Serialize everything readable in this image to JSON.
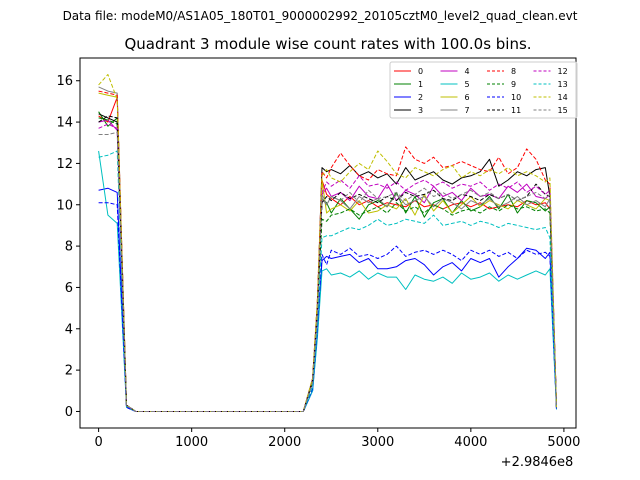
{
  "header": {
    "data_file": "Data file: modeM0/AS1A05_180T01_9000002992_20105cztM0_level2_quad_clean.evt"
  },
  "chart_data": {
    "type": "line",
    "title": "Quadrant 3 module wise count rates with 100.0s bins.",
    "xlabel": "",
    "ylabel": "",
    "x_offset_label": "+2.9846e8",
    "xlim": [
      -200,
      5130
    ],
    "ylim": [
      -0.8,
      17.1
    ],
    "x_ticks": [
      0,
      1000,
      2000,
      3000,
      4000,
      5000
    ],
    "x_tick_labels": [
      "0",
      "1000",
      "2000",
      "3000",
      "4000",
      "5000"
    ],
    "y_ticks": [
      0,
      2,
      4,
      6,
      8,
      10,
      12,
      14,
      16
    ],
    "y_tick_labels": [
      "0",
      "2",
      "4",
      "6",
      "8",
      "10",
      "12",
      "14",
      "16"
    ],
    "grid": false,
    "legend_position": "top-right",
    "x": [
      0,
      100,
      200,
      300,
      400,
      500,
      600,
      700,
      800,
      900,
      1000,
      1100,
      1200,
      1300,
      1400,
      1500,
      1600,
      1700,
      1800,
      1900,
      2000,
      2100,
      2200,
      2300,
      2350,
      2400,
      2450,
      2500,
      2600,
      2700,
      2800,
      2900,
      3000,
      3100,
      3200,
      3300,
      3400,
      3500,
      3600,
      3700,
      3800,
      3900,
      4000,
      4100,
      4200,
      4300,
      4400,
      4500,
      4600,
      4700,
      4800,
      4850,
      4920
    ],
    "series": [
      {
        "name": "0",
        "color": "#ff0000",
        "dash": false,
        "values": [
          14.3,
          14.0,
          15.2,
          0.3,
          0.0,
          0.0,
          0.0,
          0.0,
          0.0,
          0.0,
          0.0,
          0.0,
          0.0,
          0.0,
          0.0,
          0.0,
          0.0,
          0.0,
          0.0,
          0.0,
          0.0,
          0.0,
          0.0,
          1.5,
          5.0,
          11.2,
          10.5,
          10.3,
          10.0,
          10.4,
          10.0,
          10.2,
          9.9,
          10.1,
          10.0,
          9.9,
          10.2,
          9.9,
          10.0,
          9.8,
          10.0,
          10.1,
          9.9,
          10.1,
          9.8,
          9.9,
          10.0,
          9.9,
          10.2,
          10.0,
          10.1,
          9.8,
          0.2
        ]
      },
      {
        "name": "1",
        "color": "#008000",
        "dash": false,
        "values": [
          14.5,
          13.8,
          14.2,
          0.3,
          0.0,
          0.0,
          0.0,
          0.0,
          0.0,
          0.0,
          0.0,
          0.0,
          0.0,
          0.0,
          0.0,
          0.0,
          0.0,
          0.0,
          0.0,
          0.0,
          0.0,
          0.0,
          0.0,
          1.4,
          4.8,
          10.3,
          10.1,
          9.6,
          10.3,
          9.8,
          9.3,
          10.0,
          10.2,
          9.9,
          10.6,
          9.6,
          10.4,
          9.4,
          10.1,
          10.3,
          9.6,
          10.2,
          9.7,
          9.9,
          10.4,
          9.8,
          10.5,
          9.6,
          10.2,
          10.1,
          9.7,
          9.9,
          0.2
        ]
      },
      {
        "name": "2",
        "color": "#0000ff",
        "dash": false,
        "values": [
          10.7,
          10.8,
          10.6,
          0.2,
          0.0,
          0.0,
          0.0,
          0.0,
          0.0,
          0.0,
          0.0,
          0.0,
          0.0,
          0.0,
          0.0,
          0.0,
          0.0,
          0.0,
          0.0,
          0.0,
          0.0,
          0.0,
          0.0,
          1.0,
          3.7,
          7.3,
          7.5,
          7.4,
          7.5,
          7.6,
          7.2,
          7.4,
          6.9,
          6.9,
          7.0,
          7.3,
          7.4,
          7.1,
          6.6,
          7.0,
          7.2,
          6.8,
          7.4,
          7.2,
          7.4,
          6.5,
          7.0,
          7.4,
          7.9,
          7.8,
          7.4,
          7.7,
          0.1
        ]
      },
      {
        "name": "3",
        "color": "#000000",
        "dash": false,
        "values": [
          14.4,
          14.2,
          14.0,
          0.3,
          0.0,
          0.0,
          0.0,
          0.0,
          0.0,
          0.0,
          0.0,
          0.0,
          0.0,
          0.0,
          0.0,
          0.0,
          0.0,
          0.0,
          0.0,
          0.0,
          0.0,
          0.0,
          0.0,
          1.5,
          5.0,
          11.8,
          11.6,
          11.7,
          11.5,
          11.9,
          11.4,
          11.6,
          11.3,
          11.5,
          11.0,
          11.8,
          11.2,
          11.4,
          11.6,
          11.2,
          11.0,
          11.3,
          11.4,
          11.6,
          12.2,
          10.9,
          11.2,
          11.6,
          11.4,
          11.7,
          11.8,
          10.4,
          0.2
        ]
      },
      {
        "name": "4",
        "color": "#c000c0",
        "dash": false,
        "values": [
          14.0,
          14.1,
          13.6,
          0.3,
          0.0,
          0.0,
          0.0,
          0.0,
          0.0,
          0.0,
          0.0,
          0.0,
          0.0,
          0.0,
          0.0,
          0.0,
          0.0,
          0.0,
          0.0,
          0.0,
          0.0,
          0.0,
          0.0,
          1.4,
          5.0,
          10.5,
          10.8,
          10.4,
          10.6,
          10.2,
          10.9,
          10.4,
          10.3,
          11.0,
          10.2,
          10.7,
          10.5,
          10.1,
          10.9,
          10.4,
          10.6,
          10.2,
          10.8,
          10.4,
          10.5,
          10.3,
          10.9,
          10.6,
          11.0,
          10.4,
          10.3,
          10.5,
          0.2
        ]
      },
      {
        "name": "5",
        "color": "#00c0c0",
        "dash": false,
        "values": [
          12.6,
          9.5,
          9.1,
          0.2,
          0.0,
          0.0,
          0.0,
          0.0,
          0.0,
          0.0,
          0.0,
          0.0,
          0.0,
          0.0,
          0.0,
          0.0,
          0.0,
          0.0,
          0.0,
          0.0,
          0.0,
          0.0,
          0.0,
          1.0,
          3.5,
          6.8,
          6.9,
          6.6,
          6.7,
          6.5,
          6.8,
          6.4,
          6.7,
          6.5,
          6.5,
          5.9,
          6.6,
          6.4,
          6.3,
          6.5,
          6.2,
          6.7,
          6.4,
          6.5,
          6.7,
          6.3,
          6.6,
          6.4,
          6.6,
          6.8,
          6.6,
          6.9,
          0.1
        ]
      },
      {
        "name": "6",
        "color": "#bfbf00",
        "dash": false,
        "values": [
          15.4,
          15.3,
          15.2,
          0.3,
          0.0,
          0.0,
          0.0,
          0.0,
          0.0,
          0.0,
          0.0,
          0.0,
          0.0,
          0.0,
          0.0,
          0.0,
          0.0,
          0.0,
          0.0,
          0.0,
          0.0,
          0.0,
          0.0,
          1.5,
          5.0,
          11.2,
          9.6,
          9.8,
          10.0,
          9.7,
          10.2,
          9.6,
          9.7,
          10.0,
          9.8,
          10.3,
          9.5,
          10.5,
          9.7,
          10.2,
          9.6,
          10.0,
          10.4,
          9.9,
          10.2,
          10.0,
          9.8,
          10.2,
          10.0,
          9.8,
          10.3,
          10.2,
          0.2
        ]
      },
      {
        "name": "7",
        "color": "#808080",
        "dash": false,
        "values": [
          15.7,
          15.5,
          15.4,
          0.3,
          0.0,
          0.0,
          0.0,
          0.0,
          0.0,
          0.0,
          0.0,
          0.0,
          0.0,
          0.0,
          0.0,
          0.0,
          0.0,
          0.0,
          0.0,
          0.0,
          0.0,
          0.0,
          0.0,
          1.6,
          5.2,
          10.3,
          10.0,
          10.4,
          10.2,
          9.8,
          10.4,
          10.1,
          10.3,
          9.9,
          10.5,
          10.0,
          10.2,
          10.4,
          9.9,
          10.3,
          10.1,
          9.8,
          10.2,
          10.0,
          10.3,
          9.9,
          10.1,
          10.4,
          10.0,
          10.2,
          9.9,
          10.3,
          0.2
        ]
      },
      {
        "name": "8",
        "color": "#ff0000",
        "dash": true,
        "values": [
          15.5,
          15.4,
          15.3,
          0.3,
          0.0,
          0.0,
          0.0,
          0.0,
          0.0,
          0.0,
          0.0,
          0.0,
          0.0,
          0.0,
          0.0,
          0.0,
          0.0,
          0.0,
          0.0,
          0.0,
          0.0,
          0.0,
          0.0,
          1.6,
          5.3,
          11.6,
          11.3,
          11.8,
          12.5,
          11.9,
          11.4,
          11.2,
          11.7,
          11.5,
          11.4,
          12.8,
          12.2,
          12.0,
          12.3,
          11.8,
          11.9,
          12.1,
          11.9,
          11.7,
          11.6,
          12.3,
          11.5,
          11.8,
          12.7,
          12.2,
          11.2,
          11.0,
          0.2
        ]
      },
      {
        "name": "9",
        "color": "#008000",
        "dash": true,
        "values": [
          14.2,
          14.1,
          13.9,
          0.3,
          0.0,
          0.0,
          0.0,
          0.0,
          0.0,
          0.0,
          0.0,
          0.0,
          0.0,
          0.0,
          0.0,
          0.0,
          0.0,
          0.0,
          0.0,
          0.0,
          0.0,
          0.0,
          0.0,
          1.4,
          4.7,
          9.3,
          9.2,
          9.5,
          9.6,
          9.8,
          9.5,
          9.7,
          9.9,
          9.6,
          10.1,
          9.7,
          9.9,
          9.6,
          10.0,
          9.8,
          9.5,
          9.7,
          9.8,
          9.6,
          9.9,
          9.7,
          10.0,
          9.8,
          9.9,
          9.7,
          9.8,
          9.6,
          0.2
        ]
      },
      {
        "name": "10",
        "color": "#0000ff",
        "dash": true,
        "values": [
          10.1,
          10.1,
          10.0,
          0.2,
          0.0,
          0.0,
          0.0,
          0.0,
          0.0,
          0.0,
          0.0,
          0.0,
          0.0,
          0.0,
          0.0,
          0.0,
          0.0,
          0.0,
          0.0,
          0.0,
          0.0,
          0.0,
          0.0,
          1.1,
          3.9,
          7.6,
          7.1,
          7.8,
          7.6,
          7.9,
          7.5,
          7.6,
          7.4,
          7.6,
          8.0,
          7.5,
          7.7,
          7.8,
          7.6,
          7.8,
          7.6,
          7.3,
          7.8,
          7.6,
          7.8,
          7.5,
          7.7,
          7.4,
          7.8,
          7.6,
          7.7,
          7.5,
          0.1
        ]
      },
      {
        "name": "11",
        "color": "#000000",
        "dash": true,
        "values": [
          14.0,
          14.3,
          14.2,
          0.3,
          0.0,
          0.0,
          0.0,
          0.0,
          0.0,
          0.0,
          0.0,
          0.0,
          0.0,
          0.0,
          0.0,
          0.0,
          0.0,
          0.0,
          0.0,
          0.0,
          0.0,
          0.0,
          0.0,
          1.5,
          4.9,
          10.1,
          10.4,
          10.2,
          10.6,
          10.3,
          10.5,
          10.3,
          10.1,
          10.4,
          10.2,
          10.6,
          10.4,
          10.5,
          10.7,
          10.3,
          10.2,
          10.5,
          10.4,
          10.2,
          10.5,
          10.3,
          10.5,
          10.2,
          10.4,
          11.0,
          10.5,
          10.4,
          0.2
        ]
      },
      {
        "name": "12",
        "color": "#c000c0",
        "dash": true,
        "values": [
          13.7,
          13.9,
          13.7,
          0.3,
          0.0,
          0.0,
          0.0,
          0.0,
          0.0,
          0.0,
          0.0,
          0.0,
          0.0,
          0.0,
          0.0,
          0.0,
          0.0,
          0.0,
          0.0,
          0.0,
          0.0,
          0.0,
          0.0,
          1.4,
          4.8,
          10.6,
          11.1,
          10.9,
          11.2,
          10.8,
          11.4,
          10.9,
          11.0,
          10.8,
          11.1,
          10.7,
          11.0,
          11.2,
          10.9,
          11.1,
          10.8,
          11.0,
          10.9,
          11.1,
          10.7,
          11.0,
          10.8,
          11.1,
          10.6,
          10.9,
          10.5,
          10.7,
          0.2
        ]
      },
      {
        "name": "13",
        "color": "#00c0c0",
        "dash": true,
        "values": [
          12.3,
          12.4,
          12.6,
          0.3,
          0.0,
          0.0,
          0.0,
          0.0,
          0.0,
          0.0,
          0.0,
          0.0,
          0.0,
          0.0,
          0.0,
          0.0,
          0.0,
          0.0,
          0.0,
          0.0,
          0.0,
          0.0,
          0.0,
          1.2,
          4.2,
          8.4,
          8.5,
          8.5,
          8.7,
          8.9,
          8.8,
          9.0,
          9.3,
          9.0,
          9.1,
          9.3,
          9.2,
          9.1,
          9.5,
          9.0,
          9.1,
          9.2,
          9.0,
          9.2,
          9.1,
          8.9,
          9.1,
          9.0,
          8.9,
          8.8,
          8.9,
          8.4,
          0.2
        ]
      },
      {
        "name": "14",
        "color": "#bfbf00",
        "dash": true,
        "values": [
          15.8,
          16.3,
          15.1,
          0.3,
          0.0,
          0.0,
          0.0,
          0.0,
          0.0,
          0.0,
          0.0,
          0.0,
          0.0,
          0.0,
          0.0,
          0.0,
          0.0,
          0.0,
          0.0,
          0.0,
          0.0,
          0.0,
          0.0,
          1.6,
          5.3,
          11.4,
          11.7,
          11.3,
          11.1,
          11.6,
          12.0,
          11.7,
          12.6,
          12.1,
          11.5,
          11.3,
          11.8,
          11.6,
          11.4,
          11.7,
          11.9,
          11.3,
          11.6,
          11.4,
          11.7,
          11.5,
          11.8,
          11.4,
          11.6,
          11.4,
          11.1,
          11.3,
          0.2
        ]
      },
      {
        "name": "15",
        "color": "#808080",
        "dash": true,
        "values": [
          13.4,
          13.4,
          13.5,
          0.3,
          0.0,
          0.0,
          0.0,
          0.0,
          0.0,
          0.0,
          0.0,
          0.0,
          0.0,
          0.0,
          0.0,
          0.0,
          0.0,
          0.0,
          0.0,
          0.0,
          0.0,
          0.0,
          0.0,
          1.4,
          4.6,
          10.5,
          10.0,
          10.4,
          10.2,
          10.6,
          10.1,
          10.7,
          10.3,
          10.4,
          10.6,
          10.2,
          10.5,
          10.8,
          10.4,
          10.6,
          10.3,
          10.5,
          10.7,
          10.4,
          10.6,
          10.3,
          10.5,
          10.2,
          10.4,
          10.6,
          10.3,
          10.5,
          0.2
        ]
      }
    ]
  }
}
